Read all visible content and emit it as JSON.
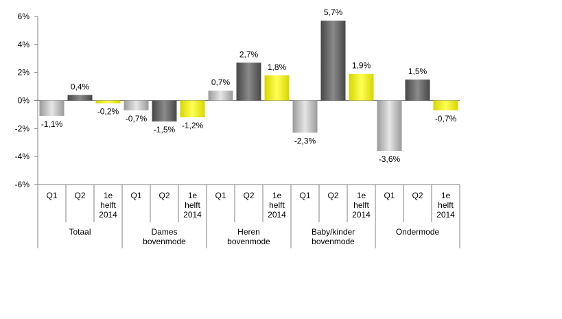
{
  "chart_data": {
    "type": "bar",
    "title": "",
    "xlabel": "",
    "ylabel": "",
    "ylim": [
      -6,
      6
    ],
    "y_ticks": [
      6,
      4,
      2,
      0,
      -2,
      -4,
      -6
    ],
    "y_tick_labels": [
      "6%",
      "4%",
      "2%",
      "0%",
      "-2%",
      "-4%",
      "-6%"
    ],
    "grid": false,
    "legend": "none",
    "groups": [
      {
        "label": "Totaal",
        "bars": [
          {
            "period": "Q1",
            "value": -1.1,
            "value_label": "-1,1%",
            "fill": "q1"
          },
          {
            "period": "Q2",
            "value": 0.4,
            "value_label": "0,4%",
            "fill": "q2"
          },
          {
            "period": "1e helft 2014",
            "value": -0.2,
            "value_label": "-0,2%",
            "fill": "h1"
          }
        ]
      },
      {
        "label": "Dames bovenmode",
        "bars": [
          {
            "period": "Q1",
            "value": -0.7,
            "value_label": "-0,7%",
            "fill": "q1"
          },
          {
            "period": "Q2",
            "value": -1.5,
            "value_label": "-1,5%",
            "fill": "q2"
          },
          {
            "period": "1e helft 2014",
            "value": -1.2,
            "value_label": "-1,2%",
            "fill": "h1"
          }
        ]
      },
      {
        "label": "Heren bovenmode",
        "bars": [
          {
            "period": "Q1",
            "value": 0.7,
            "value_label": "0,7%",
            "fill": "q1"
          },
          {
            "period": "Q2",
            "value": 2.7,
            "value_label": "2,7%",
            "fill": "q2"
          },
          {
            "period": "1e helft 2014",
            "value": 1.8,
            "value_label": "1,8%",
            "fill": "h1"
          }
        ]
      },
      {
        "label": "Baby/kinder bovenmode",
        "bars": [
          {
            "period": "Q1",
            "value": -2.3,
            "value_label": "-2,3%",
            "fill": "q1"
          },
          {
            "period": "Q2",
            "value": 5.7,
            "value_label": "5,7%",
            "fill": "q2"
          },
          {
            "period": "1e helft 2014",
            "value": 1.9,
            "value_label": "1,9%",
            "fill": "h1"
          }
        ]
      },
      {
        "label": "Ondermode",
        "bars": [
          {
            "period": "Q1",
            "value": -3.6,
            "value_label": "-3,6%",
            "fill": "q1"
          },
          {
            "period": "Q2",
            "value": 1.5,
            "value_label": "1,5%",
            "fill": "q2"
          },
          {
            "period": "1e helft 2014",
            "value": -0.7,
            "value_label": "-0,7%",
            "fill": "h1"
          }
        ]
      }
    ],
    "colors": {
      "q1_light": "#e6e6e6",
      "q1_dark": "#9a9a9a",
      "q2_light": "#8a8a8a",
      "q2_dark": "#474747",
      "h1_light": "#ffff55",
      "h1_dark": "#d6d600",
      "axis": "#808080"
    }
  }
}
